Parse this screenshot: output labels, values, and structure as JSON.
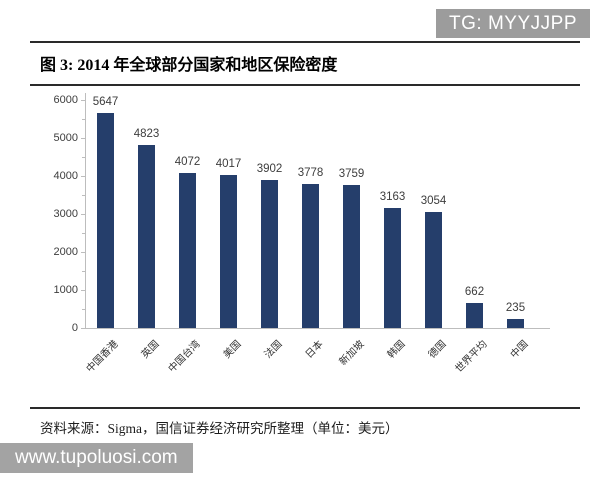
{
  "badge": {
    "label": "TG: MYYJJPP"
  },
  "figure": {
    "title": "图 3: 2014 年全球部分国家和地区保险密度"
  },
  "chart_data": {
    "type": "bar",
    "title": "2014 年全球部分国家和地区保险密度",
    "categories": [
      "中国香港",
      "英国",
      "中国台湾",
      "美国",
      "法国",
      "日本",
      "新加坡",
      "韩国",
      "德国",
      "世界平均",
      "中国"
    ],
    "values": [
      5647,
      4823,
      4072,
      4017,
      3902,
      3778,
      3759,
      3163,
      3054,
      662,
      235
    ],
    "xlabel": "",
    "ylabel": "",
    "ylim": [
      0,
      6000
    ],
    "yticks": [
      0,
      1000,
      2000,
      3000,
      4000,
      5000,
      6000
    ],
    "unit": "美元",
    "grid": false,
    "legend": false,
    "value_labels": true,
    "bar_color": "#253e6b",
    "axis_color": "#bdbdbd",
    "label_color": "#3d3d3d"
  },
  "source": {
    "text": "资料来源：Sigma，国信证券经济研究所整理（单位：美元）"
  },
  "watermark": {
    "text": "www.tupoluosi.com"
  }
}
